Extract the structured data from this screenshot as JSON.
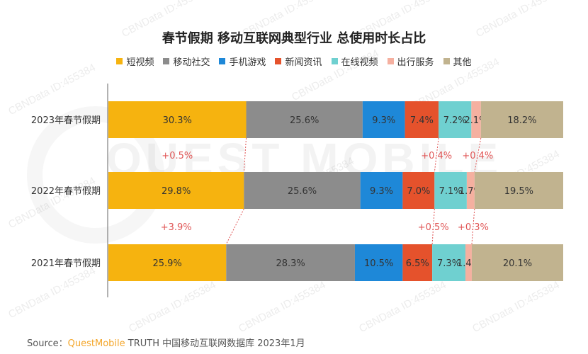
{
  "chart_data": {
    "type": "bar",
    "orientation": "horizontal",
    "stacked": true,
    "title": "春节假期 移动互联网典型行业 总使用时长占比",
    "legend_position": "top",
    "categories": [
      "2023年春节假期",
      "2022年春节假期",
      "2021年春节假期"
    ],
    "series": [
      {
        "name": "短视频",
        "color": "#F6B30F",
        "values": [
          30.3,
          29.8,
          25.9
        ],
        "labels": [
          "30.3%",
          "29.8%",
          "25.9%"
        ]
      },
      {
        "name": "移动社交",
        "color": "#8C8C8C",
        "values": [
          25.6,
          25.6,
          28.3
        ],
        "labels": [
          "25.6%",
          "25.6%",
          "28.3%"
        ]
      },
      {
        "name": "手机游戏",
        "color": "#1E88D8",
        "values": [
          9.3,
          9.3,
          10.5
        ],
        "labels": [
          "9.3%",
          "9.3%",
          "10.5%"
        ]
      },
      {
        "name": "新闻资讯",
        "color": "#E5522C",
        "values": [
          7.4,
          7.0,
          6.5
        ],
        "labels": [
          "7.4%",
          "7.0%",
          "6.5%"
        ]
      },
      {
        "name": "在线视频",
        "color": "#6FD0D0",
        "values": [
          7.2,
          7.1,
          7.3
        ],
        "labels": [
          "7.2%",
          "7.1%",
          "7.3%"
        ]
      },
      {
        "name": "出行服务",
        "color": "#F5B0A0",
        "values": [
          2.1,
          1.7,
          1.4
        ],
        "labels": [
          "2.1%",
          "1.7%",
          "1.4%"
        ]
      },
      {
        "name": "其他",
        "color": "#C1B38F",
        "values": [
          18.2,
          19.5,
          20.1
        ],
        "labels": [
          "18.2%",
          "19.5%",
          "20.1%"
        ]
      }
    ],
    "change_annotations": [
      {
        "between": [
          0,
          1
        ],
        "series_index": 0,
        "label": "+0.5%"
      },
      {
        "between": [
          0,
          1
        ],
        "series_index": 3,
        "label": "+0.4%"
      },
      {
        "between": [
          0,
          1
        ],
        "series_index": 5,
        "label": "+0.4%"
      },
      {
        "between": [
          1,
          2
        ],
        "series_index": 0,
        "label": "+3.9%"
      },
      {
        "between": [
          1,
          2
        ],
        "series_index": 3,
        "label": "+0.5%"
      },
      {
        "between": [
          1,
          2
        ],
        "series_index": 5,
        "label": "+0.3%"
      }
    ],
    "xlim": [
      0,
      100
    ]
  },
  "watermark": {
    "text": "CBNData ID:455384",
    "brand": "QUEST MOBILE"
  },
  "source": {
    "prefix": "Source：",
    "brand": "QuestMobile",
    "rest": " TRUTH 中国移动互联网数据库 2023年1月"
  }
}
